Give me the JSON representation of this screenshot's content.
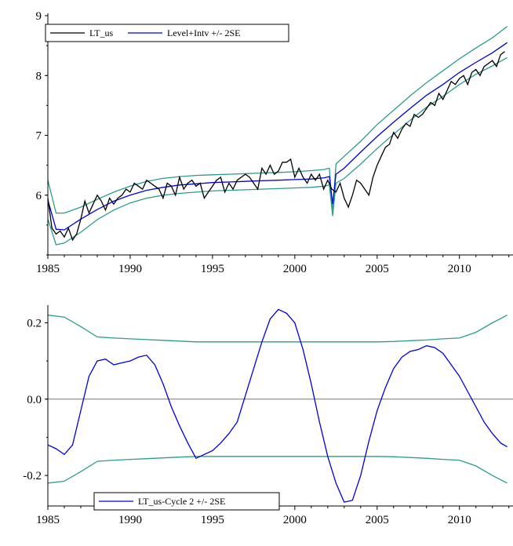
{
  "colors": {
    "series_black": "#000000",
    "series_blue": "#0000dd",
    "band_teal": "#2a9d8f",
    "zero_line": "#777777",
    "axis": "#000000"
  },
  "chart_data": [
    {
      "type": "line",
      "title": "",
      "xlabel": "",
      "ylabel": "",
      "xlim": [
        1985,
        2013.3
      ],
      "ylim": [
        5.0,
        9.0
      ],
      "x_ticks": [
        "1985",
        "1990",
        "1995",
        "2000",
        "2005",
        "2010"
      ],
      "y_ticks": [
        "6",
        "7",
        "8",
        "9"
      ],
      "legend_position": "top-left",
      "legend": [
        "LT_us",
        "Level+Intv +/- 2SE"
      ],
      "series": [
        {
          "name": "LT_us",
          "color": "#000000",
          "x": [
            1985.0,
            1985.25,
            1985.5,
            1985.75,
            1986.0,
            1986.25,
            1986.5,
            1986.75,
            1987.0,
            1987.25,
            1987.5,
            1987.75,
            1988.0,
            1988.25,
            1988.5,
            1988.75,
            1989.0,
            1989.25,
            1989.5,
            1989.75,
            1990.0,
            1990.25,
            1990.5,
            1990.75,
            1991.0,
            1991.25,
            1991.5,
            1991.75,
            1992.0,
            1992.25,
            1992.5,
            1992.75,
            1993.0,
            1993.25,
            1993.5,
            1993.75,
            1994.0,
            1994.25,
            1994.5,
            1994.75,
            1995.0,
            1995.25,
            1995.5,
            1995.75,
            1996.0,
            1996.25,
            1996.5,
            1996.75,
            1997.0,
            1997.25,
            1997.5,
            1997.75,
            1998.0,
            1998.25,
            1998.5,
            1998.75,
            1999.0,
            1999.25,
            1999.5,
            1999.75,
            2000.0,
            2000.25,
            2000.5,
            2000.75,
            2001.0,
            2001.25,
            2001.5,
            2001.75,
            2002.0,
            2002.25,
            2002.5,
            2002.75,
            2003.0,
            2003.25,
            2003.5,
            2003.75,
            2004.0,
            2004.25,
            2004.5,
            2004.75,
            2005.0,
            2005.25,
            2005.5,
            2005.75,
            2006.0,
            2006.25,
            2006.5,
            2006.75,
            2007.0,
            2007.25,
            2007.5,
            2007.75,
            2008.0,
            2008.25,
            2008.5,
            2008.75,
            2009.0,
            2009.25,
            2009.5,
            2009.75,
            2010.0,
            2010.25,
            2010.5,
            2010.75,
            2011.0,
            2011.25,
            2011.5,
            2011.75,
            2012.0,
            2012.25,
            2012.5,
            2012.75
          ],
          "y": [
            5.95,
            5.45,
            5.35,
            5.4,
            5.3,
            5.45,
            5.25,
            5.35,
            5.6,
            5.9,
            5.7,
            5.85,
            6.0,
            5.9,
            5.75,
            5.95,
            5.85,
            5.95,
            6.0,
            6.1,
            6.05,
            6.2,
            6.15,
            6.1,
            6.25,
            6.2,
            6.15,
            6.1,
            5.95,
            6.2,
            6.15,
            6.0,
            6.3,
            6.1,
            6.2,
            6.25,
            6.15,
            6.2,
            5.95,
            6.05,
            6.15,
            6.25,
            6.3,
            6.05,
            6.2,
            6.1,
            6.25,
            6.3,
            6.35,
            6.3,
            6.2,
            6.1,
            6.45,
            6.35,
            6.5,
            6.35,
            6.4,
            6.55,
            6.55,
            6.6,
            6.3,
            6.45,
            6.3,
            6.2,
            6.35,
            6.25,
            6.35,
            6.1,
            6.25,
            6.1,
            6.05,
            6.2,
            5.95,
            5.8,
            6.0,
            6.25,
            6.2,
            6.1,
            6.0,
            6.3,
            6.5,
            6.65,
            6.8,
            6.85,
            7.05,
            6.95,
            7.1,
            7.2,
            7.15,
            7.35,
            7.3,
            7.35,
            7.45,
            7.55,
            7.5,
            7.7,
            7.6,
            7.75,
            7.9,
            7.85,
            7.95,
            8.0,
            7.85,
            8.05,
            8.1,
            8.0,
            8.15,
            8.2,
            8.25,
            8.15,
            8.35,
            8.4
          ]
        },
        {
          "name": "Level+Intv +/- 2SE",
          "color": "#0000dd",
          "x": [
            1985.0,
            1985.5,
            1986.0,
            1987.0,
            1988.0,
            1989.0,
            1990.0,
            1991.0,
            1992.0,
            1993.0,
            1994.0,
            1995.0,
            1996.0,
            1997.0,
            1998.0,
            1999.0,
            2000.0,
            2001.0,
            2001.8,
            2002.1,
            2002.3,
            2002.5,
            2003.0,
            2004.0,
            2005.0,
            2006.0,
            2007.0,
            2008.0,
            2009.0,
            2010.0,
            2011.0,
            2012.0,
            2012.9
          ],
          "y": [
            5.92,
            5.43,
            5.42,
            5.6,
            5.76,
            5.9,
            6.0,
            6.08,
            6.13,
            6.17,
            6.19,
            6.21,
            6.22,
            6.23,
            6.24,
            6.25,
            6.26,
            6.27,
            6.29,
            6.31,
            5.85,
            6.35,
            6.45,
            6.72,
            6.98,
            7.22,
            7.45,
            7.67,
            7.85,
            8.05,
            8.22,
            8.38,
            8.55
          ]
        }
      ],
      "bands": [
        {
          "color": "#2a9d8f",
          "x": [
            1985.0,
            1985.5,
            1986.0,
            1987.0,
            1988.0,
            1989.0,
            1990.0,
            1991.0,
            1992.0,
            1993.0,
            1994.0,
            1995.0,
            1996.0,
            1997.0,
            1998.0,
            1999.0,
            2000.0,
            2001.0,
            2001.8,
            2002.1,
            2002.3,
            2002.5,
            2003.0,
            2004.0,
            2005.0,
            2006.0,
            2007.0,
            2008.0,
            2009.0,
            2010.0,
            2011.0,
            2012.0,
            2012.9
          ],
          "upper": [
            6.25,
            5.7,
            5.7,
            5.8,
            5.93,
            6.05,
            6.15,
            6.23,
            6.28,
            6.31,
            6.33,
            6.34,
            6.35,
            6.36,
            6.37,
            6.38,
            6.39,
            6.41,
            6.43,
            6.45,
            5.7,
            6.52,
            6.65,
            6.9,
            7.18,
            7.42,
            7.66,
            7.88,
            8.08,
            8.28,
            8.46,
            8.63,
            8.82
          ],
          "lower": [
            5.6,
            5.17,
            5.2,
            5.38,
            5.59,
            5.75,
            5.87,
            5.95,
            6.0,
            6.03,
            6.05,
            6.07,
            6.08,
            6.09,
            6.1,
            6.11,
            6.12,
            6.13,
            6.15,
            6.17,
            5.65,
            6.2,
            6.28,
            6.52,
            6.78,
            7.02,
            7.25,
            7.47,
            7.65,
            7.85,
            8.02,
            8.16,
            8.3
          ]
        }
      ]
    },
    {
      "type": "line",
      "title": "",
      "xlabel": "",
      "ylabel": "",
      "xlim": [
        1985,
        2013.3
      ],
      "ylim": [
        -0.28,
        0.24
      ],
      "x_ticks": [
        "1985",
        "1990",
        "1995",
        "2000",
        "2005",
        "2010"
      ],
      "y_ticks": [
        "-0.2",
        "0.0",
        "0.2"
      ],
      "zero_line": true,
      "legend_position": "bottom-left",
      "legend": [
        "LT_us-Cycle 2 +/- 2SE"
      ],
      "series": [
        {
          "name": "LT_us-Cycle 2 +/- 2SE",
          "color": "#0000dd",
          "x": [
            1985.0,
            1985.5,
            1986.0,
            1986.5,
            1987.0,
            1987.5,
            1988.0,
            1988.5,
            1989.0,
            1989.5,
            1990.0,
            1990.5,
            1991.0,
            1991.5,
            1992.0,
            1992.5,
            1993.0,
            1993.5,
            1994.0,
            1994.5,
            1995.0,
            1995.5,
            1996.0,
            1996.5,
            1997.0,
            1997.5,
            1998.0,
            1998.5,
            1999.0,
            1999.5,
            2000.0,
            2000.5,
            2001.0,
            2001.5,
            2002.0,
            2002.5,
            2003.0,
            2003.5,
            2004.0,
            2004.5,
            2005.0,
            2005.5,
            2006.0,
            2006.5,
            2007.0,
            2007.5,
            2008.0,
            2008.5,
            2009.0,
            2009.5,
            2010.0,
            2010.5,
            2011.0,
            2011.5,
            2012.0,
            2012.5,
            2012.9
          ],
          "y": [
            -0.12,
            -0.13,
            -0.145,
            -0.12,
            -0.03,
            0.06,
            0.1,
            0.105,
            0.09,
            0.095,
            0.1,
            0.11,
            0.115,
            0.09,
            0.04,
            -0.02,
            -0.07,
            -0.115,
            -0.155,
            -0.145,
            -0.135,
            -0.115,
            -0.09,
            -0.06,
            0.01,
            0.08,
            0.15,
            0.21,
            0.235,
            0.225,
            0.2,
            0.13,
            0.04,
            -0.06,
            -0.15,
            -0.22,
            -0.27,
            -0.265,
            -0.2,
            -0.11,
            -0.03,
            0.03,
            0.08,
            0.11,
            0.125,
            0.13,
            0.14,
            0.135,
            0.12,
            0.09,
            0.06,
            0.02,
            -0.02,
            -0.06,
            -0.09,
            -0.115,
            -0.125
          ]
        }
      ],
      "bands": [
        {
          "color": "#2a9d8f",
          "x": [
            1985.0,
            1986.0,
            1987.0,
            1988.0,
            1989.0,
            1990.0,
            1991.0,
            1992.0,
            1993.0,
            1994.0,
            1995.0,
            1996.0,
            1997.0,
            1998.0,
            1999.0,
            2000.0,
            2001.0,
            2002.0,
            2003.0,
            2004.0,
            2005.0,
            2006.0,
            2007.0,
            2008.0,
            2009.0,
            2010.0,
            2011.0,
            2012.0,
            2012.9
          ],
          "upper": [
            0.22,
            0.215,
            0.19,
            0.163,
            0.16,
            0.158,
            0.156,
            0.154,
            0.152,
            0.15,
            0.15,
            0.15,
            0.15,
            0.15,
            0.15,
            0.15,
            0.15,
            0.15,
            0.15,
            0.15,
            0.15,
            0.151,
            0.153,
            0.155,
            0.158,
            0.16,
            0.175,
            0.2,
            0.22
          ],
          "lower": [
            -0.22,
            -0.215,
            -0.19,
            -0.163,
            -0.16,
            -0.158,
            -0.156,
            -0.154,
            -0.152,
            -0.15,
            -0.15,
            -0.15,
            -0.15,
            -0.15,
            -0.15,
            -0.15,
            -0.15,
            -0.15,
            -0.15,
            -0.15,
            -0.15,
            -0.151,
            -0.153,
            -0.155,
            -0.158,
            -0.16,
            -0.175,
            -0.2,
            -0.22
          ]
        }
      ]
    }
  ]
}
